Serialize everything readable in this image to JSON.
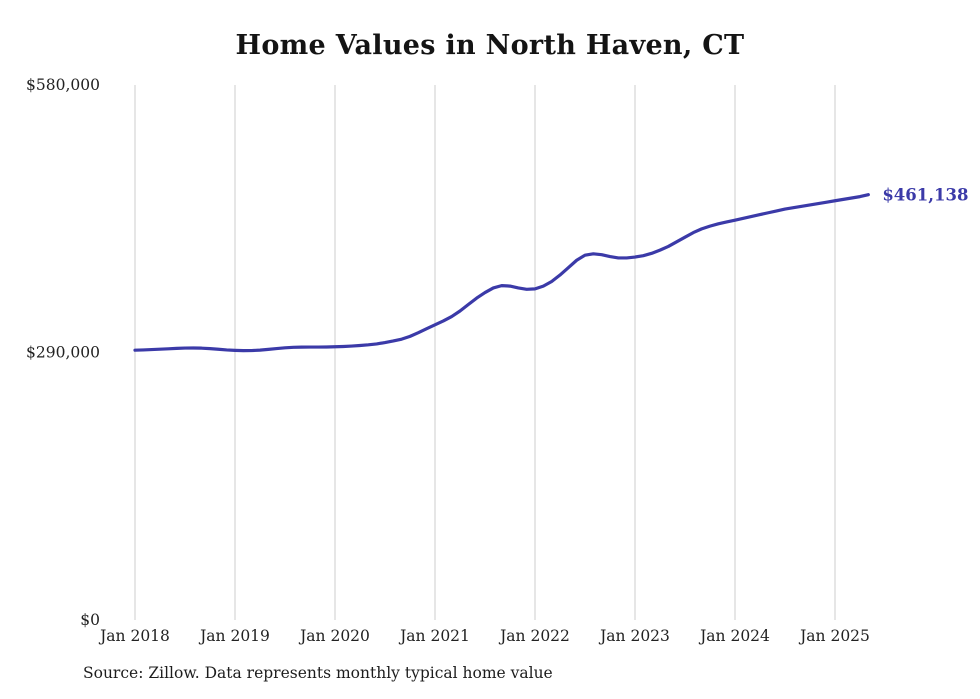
{
  "title": "Home Values in North Haven, CT",
  "source_note": "Source: Zillow. Data represents monthly typical home value",
  "colors": {
    "line": "#3b3aa8",
    "end_label": "#3b3aa8",
    "grid": "#cccccc",
    "axis_text": "#222222",
    "title_text": "#141414"
  },
  "chart_data": {
    "type": "line",
    "title": "Home Values in North Haven, CT",
    "xlabel": "",
    "ylabel": "",
    "ylim": [
      0,
      580000
    ],
    "grid": "vertical-only",
    "legend": "none",
    "x_start_month": "Jan 2018",
    "x_cadence": "monthly",
    "x_tick_labels": [
      "Jan 2018",
      "Jan 2019",
      "Jan 2020",
      "Jan 2021",
      "Jan 2022",
      "Jan 2023",
      "Jan 2024",
      "Jan 2025"
    ],
    "x_tick_month_indices": [
      0,
      12,
      24,
      36,
      48,
      60,
      72,
      84
    ],
    "y_ticks": [
      {
        "value": 0,
        "label": "$0"
      },
      {
        "value": 290000,
        "label": "$290,000"
      },
      {
        "value": 580000,
        "label": "$580,000"
      }
    ],
    "end_label": "$461,138",
    "end_value": 461138,
    "series": [
      {
        "name": "Typical home value",
        "values": [
          292500,
          292800,
          293200,
          293600,
          294000,
          294500,
          294800,
          294900,
          294700,
          294200,
          293500,
          292800,
          292300,
          292000,
          292100,
          292600,
          293400,
          294300,
          295100,
          295600,
          295800,
          295900,
          295900,
          296000,
          296200,
          296500,
          297000,
          297600,
          298300,
          299300,
          300800,
          302500,
          304500,
          307500,
          311500,
          315800,
          320000,
          324200,
          329000,
          335000,
          342000,
          349000,
          355000,
          360000,
          362500,
          362000,
          360000,
          358500,
          359000,
          362000,
          367000,
          374000,
          382000,
          390000,
          395500,
          397000,
          396000,
          394000,
          392500,
          392500,
          393500,
          395000,
          397500,
          401000,
          405000,
          410000,
          415000,
          420000,
          424000,
          427000,
          429500,
          431500,
          433500,
          435500,
          437500,
          439500,
          441500,
          443500,
          445500,
          447000,
          448500,
          450000,
          451500,
          453000,
          454500,
          456000,
          457500,
          459000,
          461138
        ]
      }
    ]
  }
}
